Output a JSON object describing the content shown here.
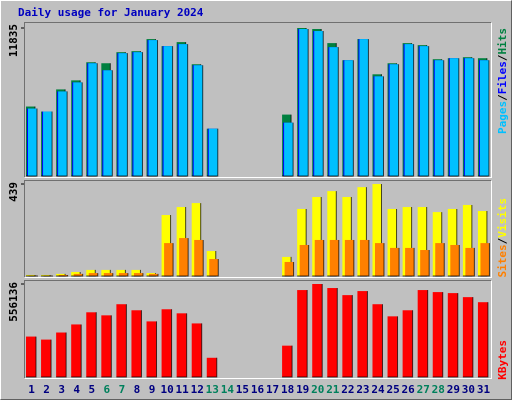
{
  "chart_data": [
    {
      "type": "bar",
      "title": "Daily usage for January 2024",
      "ylim": [
        0,
        11835
      ],
      "yticks": [
        11835
      ],
      "legend_separator": "/",
      "series": [
        {
          "name": "Hits",
          "color": "#008040",
          "values": [
            5555,
            5153,
            6924,
            7648,
            9098,
            9017,
            9903,
            9983,
            10949,
            10386,
            10708,
            8937,
            3784,
            0,
            0,
            0,
            0,
            4911,
            11835,
            11754,
            10627,
            9259,
            10949,
            8132,
            9017,
            10627,
            10466,
            9339,
            9420,
            9500,
            9420
          ]
        },
        {
          "name": "Files",
          "color": "#0000ff",
          "values": [
            5394,
            5153,
            6763,
            7487,
            9017,
            8454,
            9822,
            9903,
            10869,
            10386,
            10547,
            8856,
            3784,
            0,
            0,
            0,
            0,
            4267,
            11754,
            11593,
            10305,
            9259,
            10949,
            7970,
            8937,
            10547,
            10386,
            9259,
            9420,
            9420,
            9259
          ]
        },
        {
          "name": "Pages",
          "color": "#00c0ff",
          "values": [
            5394,
            5153,
            6763,
            7487,
            9017,
            8454,
            9822,
            9903,
            10869,
            10386,
            10547,
            8856,
            3784,
            0,
            0,
            0,
            0,
            4267,
            11754,
            11593,
            10305,
            9259,
            10949,
            7970,
            8937,
            10547,
            10386,
            9259,
            9420,
            9420,
            9259
          ]
        }
      ]
    },
    {
      "type": "bar",
      "ylim": [
        0,
        439
      ],
      "yticks": [
        439
      ],
      "legend_separator": "/",
      "series": [
        {
          "name": "Visits",
          "color": "#ffff00",
          "values": [
            5,
            5,
            10,
            19,
            29,
            29,
            29,
            29,
            14,
            291,
            329,
            348,
            119,
            0,
            0,
            0,
            0,
            91,
            320,
            377,
            405,
            377,
            424,
            439,
            320,
            329,
            329,
            305,
            320,
            339,
            310
          ]
        },
        {
          "name": "Sites",
          "color": "#ff8000",
          "values": [
            2,
            2,
            5,
            10,
            14,
            14,
            14,
            14,
            10,
            157,
            181,
            172,
            81,
            0,
            0,
            0,
            0,
            67,
            148,
            172,
            172,
            172,
            172,
            157,
            134,
            134,
            124,
            157,
            148,
            134,
            157
          ]
        }
      ]
    },
    {
      "type": "bar",
      "ylim": [
        0,
        556136
      ],
      "yticks": [
        556136
      ],
      "categories": [
        "1",
        "2",
        "3",
        "4",
        "5",
        "6",
        "7",
        "8",
        "9",
        "10",
        "11",
        "12",
        "13",
        "14",
        "15",
        "16",
        "17",
        "18",
        "19",
        "20",
        "21",
        "22",
        "23",
        "24",
        "25",
        "26",
        "27",
        "28",
        "29",
        "30",
        "31"
      ],
      "highlight_indices": [
        5,
        6,
        12,
        13,
        19,
        20,
        26,
        27
      ],
      "highlight_color": "#00805c",
      "label_color": "#000080",
      "series": [
        {
          "name": "KBytes",
          "color": "#ff0000",
          "values": [
            241800,
            223700,
            266000,
            314300,
            386900,
            368700,
            435200,
            399000,
            332500,
            405000,
            380800,
            320400,
            114900,
            0,
            0,
            0,
            0,
            187400,
            519900,
            556136,
            532000,
            489600,
            513800,
            435200,
            362700,
            399000,
            519900,
            507800,
            501700,
            477600,
            447300
          ]
        }
      ]
    }
  ]
}
